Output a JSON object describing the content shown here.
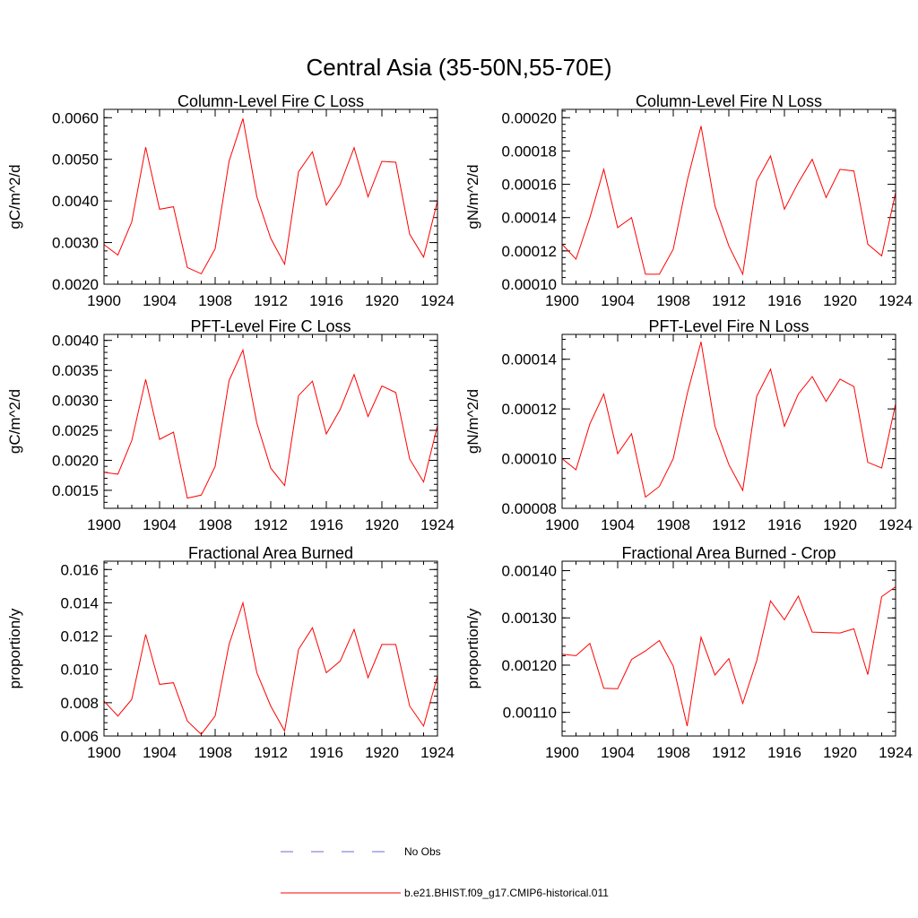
{
  "figure": {
    "title": "Central Asia (35-50N,55-70E)"
  },
  "legend": [
    {
      "label": "No Obs",
      "color": "#6b6bd6",
      "style": "dashed"
    },
    {
      "label": "b.e21.BHIST.f09_g17.CMIP6-historical.011",
      "color": "#ff0000",
      "style": "solid"
    }
  ],
  "chart_data": [
    {
      "type": "line",
      "title": "Column-Level Fire C Loss",
      "xlabel": "",
      "ylabel": "gC/m^2/d",
      "xlim": [
        1900,
        1924
      ],
      "ylim": [
        0.002,
        0.0062
      ],
      "x_ticks": [
        "1900",
        "1904",
        "1908",
        "1912",
        "1916",
        "1920",
        "1924"
      ],
      "y_ticks": [
        {
          "value": 0.002,
          "label": "0.0020"
        },
        {
          "value": 0.003,
          "label": "0.0030"
        },
        {
          "value": 0.004,
          "label": "0.0040"
        },
        {
          "value": 0.005,
          "label": "0.0050"
        },
        {
          "value": 0.006,
          "label": "0.0060"
        }
      ],
      "x": [
        1900,
        1901,
        1902,
        1903,
        1904,
        1905,
        1906,
        1907,
        1908,
        1909,
        1910,
        1911,
        1912,
        1913,
        1914,
        1915,
        1916,
        1917,
        1918,
        1919,
        1920,
        1921,
        1922,
        1923,
        1924
      ],
      "series": [
        {
          "color": "#ff0000",
          "values": [
            0.00295,
            0.0027,
            0.0035,
            0.00529,
            0.0038,
            0.00386,
            0.0024,
            0.00225,
            0.00285,
            0.00495,
            0.00598,
            0.0041,
            0.0031,
            0.00248,
            0.0047,
            0.00518,
            0.0039,
            0.0044,
            0.00528,
            0.0041,
            0.00495,
            0.00493,
            0.0032,
            0.00265,
            0.004
          ]
        }
      ]
    },
    {
      "type": "line",
      "title": "Column-Level Fire N Loss",
      "xlabel": "",
      "ylabel": "gN/m^2/d",
      "xlim": [
        1900,
        1924
      ],
      "ylim": [
        0.0001,
        0.000205
      ],
      "x_ticks": [
        "1900",
        "1904",
        "1908",
        "1912",
        "1916",
        "1920",
        "1924"
      ],
      "y_ticks": [
        {
          "value": 0.0001,
          "label": "0.00010"
        },
        {
          "value": 0.00012,
          "label": "0.00012"
        },
        {
          "value": 0.00014,
          "label": "0.00014"
        },
        {
          "value": 0.00016,
          "label": "0.00016"
        },
        {
          "value": 0.00018,
          "label": "0.00018"
        },
        {
          "value": 0.0002,
          "label": "0.00020"
        }
      ],
      "x": [
        1900,
        1901,
        1902,
        1903,
        1904,
        1905,
        1906,
        1907,
        1908,
        1909,
        1910,
        1911,
        1912,
        1913,
        1914,
        1915,
        1916,
        1917,
        1918,
        1919,
        1920,
        1921,
        1922,
        1923,
        1924
      ],
      "series": [
        {
          "color": "#ff0000",
          "values": [
            0.000124,
            0.000115,
            0.00014,
            0.000169,
            0.000134,
            0.00014,
            0.000106,
            0.000106,
            0.000121,
            0.000162,
            0.000195,
            0.000147,
            0.000123,
            0.000106,
            0.000162,
            0.000177,
            0.000145,
            0.000161,
            0.000175,
            0.000152,
            0.000169,
            0.000168,
            0.000124,
            0.000117,
            0.000155
          ]
        }
      ]
    },
    {
      "type": "line",
      "title": "PFT-Level Fire C Loss",
      "xlabel": "",
      "ylabel": "gC/m^2/d",
      "xlim": [
        1900,
        1924
      ],
      "ylim": [
        0.0012,
        0.0041
      ],
      "x_ticks": [
        "1900",
        "1904",
        "1908",
        "1912",
        "1916",
        "1920",
        "1924"
      ],
      "y_ticks": [
        {
          "value": 0.0015,
          "label": "0.0015"
        },
        {
          "value": 0.002,
          "label": "0.0020"
        },
        {
          "value": 0.0025,
          "label": "0.0025"
        },
        {
          "value": 0.003,
          "label": "0.0030"
        },
        {
          "value": 0.0035,
          "label": "0.0035"
        },
        {
          "value": 0.004,
          "label": "0.0040"
        }
      ],
      "x": [
        1900,
        1901,
        1902,
        1903,
        1904,
        1905,
        1906,
        1907,
        1908,
        1909,
        1910,
        1911,
        1912,
        1913,
        1914,
        1915,
        1916,
        1917,
        1918,
        1919,
        1920,
        1921,
        1922,
        1923,
        1924
      ],
      "series": [
        {
          "color": "#ff0000",
          "values": [
            0.0018,
            0.00177,
            0.00233,
            0.00335,
            0.00235,
            0.00247,
            0.00137,
            0.00142,
            0.0019,
            0.00333,
            0.00384,
            0.00262,
            0.00187,
            0.00158,
            0.00308,
            0.00332,
            0.00244,
            0.00285,
            0.00343,
            0.00273,
            0.00324,
            0.00313,
            0.00202,
            0.00164,
            0.00258
          ]
        }
      ]
    },
    {
      "type": "line",
      "title": "PFT-Level Fire N Loss",
      "xlabel": "",
      "ylabel": "gN/m^2/d",
      "xlim": [
        1900,
        1924
      ],
      "ylim": [
        8e-05,
        0.00015
      ],
      "x_ticks": [
        "1900",
        "1904",
        "1908",
        "1912",
        "1916",
        "1920",
        "1924"
      ],
      "y_ticks": [
        {
          "value": 8e-05,
          "label": "0.00008"
        },
        {
          "value": 0.0001,
          "label": "0.00010"
        },
        {
          "value": 0.00012,
          "label": "0.00012"
        },
        {
          "value": 0.00014,
          "label": "0.00014"
        }
      ],
      "x": [
        1900,
        1901,
        1902,
        1903,
        1904,
        1905,
        1906,
        1907,
        1908,
        1909,
        1910,
        1911,
        1912,
        1913,
        1914,
        1915,
        1916,
        1917,
        1918,
        1919,
        1920,
        1921,
        1922,
        1923,
        1924
      ],
      "series": [
        {
          "color": "#ff0000",
          "values": [
            0.0001,
            9.55e-05,
            0.000114,
            0.000126,
            0.000102,
            0.00011,
            8.45e-05,
            8.88e-05,
            0.0001,
            0.000126,
            0.000147,
            0.000113,
            9.76e-05,
            8.72e-05,
            0.000125,
            0.000136,
            0.000113,
            0.000126,
            0.000133,
            0.000123,
            0.000132,
            0.000129,
            9.85e-05,
            9.62e-05,
            0.000122
          ]
        }
      ]
    },
    {
      "type": "line",
      "title": "Fractional Area Burned",
      "xlabel": "",
      "ylabel": "proportion/y",
      "xlim": [
        1900,
        1924
      ],
      "ylim": [
        0.006,
        0.0165
      ],
      "x_ticks": [
        "1900",
        "1904",
        "1908",
        "1912",
        "1916",
        "1920",
        "1924"
      ],
      "y_ticks": [
        {
          "value": 0.006,
          "label": "0.006"
        },
        {
          "value": 0.008,
          "label": "0.008"
        },
        {
          "value": 0.01,
          "label": "0.010"
        },
        {
          "value": 0.012,
          "label": "0.012"
        },
        {
          "value": 0.014,
          "label": "0.014"
        },
        {
          "value": 0.016,
          "label": "0.016"
        }
      ],
      "x": [
        1900,
        1901,
        1902,
        1903,
        1904,
        1905,
        1906,
        1907,
        1908,
        1909,
        1910,
        1911,
        1912,
        1913,
        1914,
        1915,
        1916,
        1917,
        1918,
        1919,
        1920,
        1921,
        1922,
        1923,
        1924
      ],
      "series": [
        {
          "color": "#ff0000",
          "values": [
            0.0081,
            0.0072,
            0.0082,
            0.0121,
            0.0091,
            0.0092,
            0.0069,
            0.0061,
            0.0072,
            0.0115,
            0.014,
            0.0098,
            0.0078,
            0.0063,
            0.0112,
            0.0125,
            0.0098,
            0.0105,
            0.0124,
            0.0095,
            0.0115,
            0.0115,
            0.0078,
            0.0066,
            0.0096
          ]
        }
      ]
    },
    {
      "type": "line",
      "title": "Fractional Area Burned - Crop",
      "xlabel": "",
      "ylabel": "proportion/y",
      "xlim": [
        1900,
        1924
      ],
      "ylim": [
        0.00105,
        0.00142
      ],
      "x_ticks": [
        "1900",
        "1904",
        "1908",
        "1912",
        "1916",
        "1920",
        "1924"
      ],
      "y_ticks": [
        {
          "value": 0.0011,
          "label": "0.00110"
        },
        {
          "value": 0.0012,
          "label": "0.00120"
        },
        {
          "value": 0.0013,
          "label": "0.00130"
        },
        {
          "value": 0.0014,
          "label": "0.00140"
        }
      ],
      "x": [
        1900,
        1901,
        1902,
        1903,
        1904,
        1905,
        1906,
        1907,
        1908,
        1909,
        1910,
        1911,
        1912,
        1913,
        1914,
        1915,
        1916,
        1917,
        1918,
        1919,
        1920,
        1921,
        1922,
        1923,
        1924
      ],
      "series": [
        {
          "color": "#ff0000",
          "values": [
            0.001223,
            0.00122,
            0.001246,
            0.001151,
            0.00115,
            0.001212,
            0.00123,
            0.001252,
            0.001198,
            0.001071,
            0.001259,
            0.001179,
            0.001214,
            0.001119,
            0.001209,
            0.001336,
            0.001296,
            0.001346,
            0.00127,
            0.001269,
            0.001268,
            0.001277,
            0.00118,
            0.001345,
            0.001366
          ]
        }
      ]
    }
  ]
}
